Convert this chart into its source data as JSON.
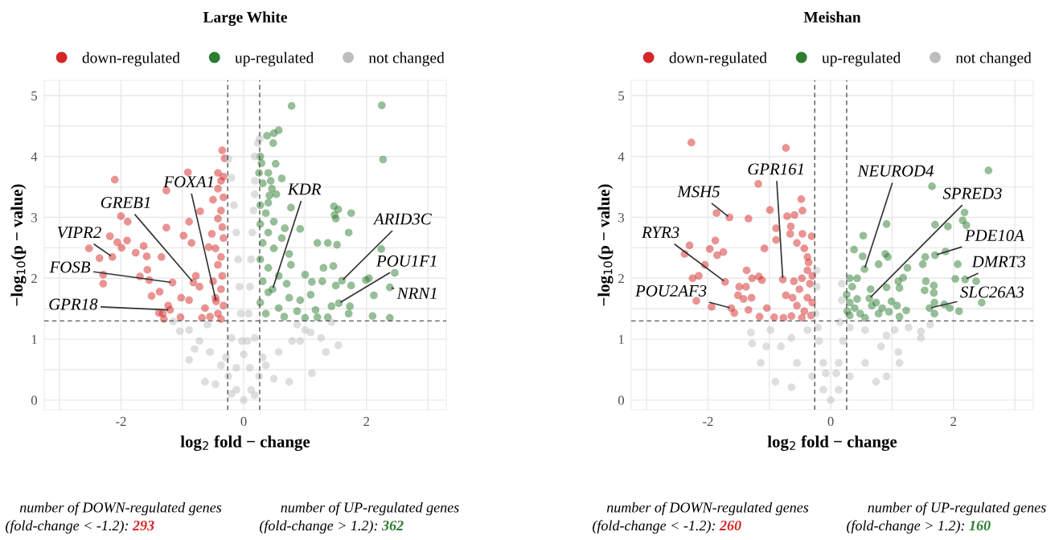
{
  "chart_data": [
    {
      "type": "scatter",
      "title": "Large White",
      "xlabel": "log$_{2}$ fold − change",
      "ylabel": "−log$_{10}$(p − value)",
      "xlim": [
        -3.25,
        3.3
      ],
      "ylim": [
        -0.16,
        5.25
      ],
      "xticks": [
        {
          "value": -3,
          "label": null
        },
        -2,
        {
          "value": -1,
          "label": null
        },
        0,
        {
          "value": 1,
          "label": null
        },
        2,
        {
          "value": 3,
          "label": null
        }
      ],
      "yticks": [
        0,
        {
          "value": 0.5,
          "label": null
        },
        1,
        {
          "value": 1.5,
          "label": null
        },
        2,
        {
          "value": 2.5,
          "label": null
        },
        3,
        {
          "value": 3.5,
          "label": null
        },
        4,
        {
          "value": 4.5,
          "label": null
        },
        5
      ],
      "grid": true,
      "legend": "top",
      "marker": "circle",
      "ref_lines": [
        {
          "axis": "x",
          "value": -0.26,
          "line_style": "dashed",
          "color": "#555555"
        },
        {
          "axis": "x",
          "value": 0.26,
          "line_style": "dashed",
          "color": "#555555"
        },
        {
          "axis": "y",
          "value": 1.3,
          "line_style": "dashed",
          "color": "#555555"
        }
      ],
      "series": [
        {
          "name": "down-regulated",
          "color": "#d62728",
          "x": [
            -2.14,
            -1.16,
            -0.82,
            -0.45,
            -1.2,
            -2.1,
            -0.91,
            -0.35,
            -0.31,
            -1.26,
            -2.0,
            -1.89,
            -2.18,
            -2.06,
            -1.9,
            -2.52,
            -2.35,
            -2.29,
            -2.29,
            -1.99,
            -1.76,
            -1.63,
            -1.58,
            -1.34,
            -1.57,
            -1.69,
            -1.54,
            -1.37,
            -1.5,
            -1.26,
            -0.98,
            -0.85,
            -0.71,
            -0.89,
            -0.52,
            -0.57,
            -1.23,
            -1.32,
            -1.38,
            -1.3,
            -1.03,
            -1.02,
            -0.89,
            -0.78,
            -0.72,
            -0.63,
            -0.68,
            -0.37,
            -0.42,
            -0.33,
            -0.5,
            -0.37,
            -0.42,
            -0.35,
            -0.33,
            -0.46,
            -0.37,
            -0.42,
            -0.35,
            -0.5,
            -0.37,
            -0.46,
            -0.33,
            -0.42,
            -0.55,
            -0.37,
            -0.33,
            -0.42
          ],
          "values": [
            2.35,
            1.93,
            1.93,
            1.62,
            1.48,
            3.62,
            3.74,
            4.1,
            3.97,
            3.44,
            3.02,
            2.93,
            2.69,
            2.59,
            2.62,
            2.49,
            2.33,
            2.06,
            1.91,
            2.5,
            2.42,
            2.53,
            2.36,
            2.35,
            2.14,
            2.03,
            1.97,
            1.78,
            1.71,
            2.83,
            2.7,
            2.58,
            3.1,
            2.93,
            2.73,
            2.51,
            1.55,
            1.42,
            1.43,
            1.33,
            1.36,
            1.68,
            1.64,
            2.04,
            1.86,
            1.51,
            1.35,
            3.6,
            3.47,
            3.33,
            3.29,
            3.11,
            2.98,
            2.84,
            2.66,
            2.49,
            2.35,
            2.22,
            2.04,
            1.95,
            1.82,
            1.68,
            1.55,
            1.42,
            1.37,
            1.33,
            3.67,
            3.73
          ]
        },
        {
          "name": "up-regulated",
          "color": "#2e7d32",
          "x": [
            0.47,
            1.6,
            1.55,
            2.38,
            0.78,
            2.25,
            2.27,
            0.38,
            0.49,
            0.57,
            0.48,
            0.27,
            0.29,
            0.52,
            0.25,
            0.4,
            0.62,
            0.31,
            0.44,
            0.46,
            0.42,
            0.53,
            0.4,
            0.77,
            1.47,
            1.54,
            1.75,
            1.48,
            1.5,
            0.67,
            0.92,
            1.71,
            1.2,
            1.37,
            1.52,
            2.24,
            0.77,
            1.3,
            1.46,
            1.0,
            1.28,
            1.11,
            1.99,
            2.04,
            2.46,
            1.5,
            1.75,
            2.12,
            1.43,
            1.73,
            1.71,
            1.37,
            2.1,
            2.38,
            1.17,
            1.2,
            0.27,
            0.36,
            0.27,
            0.4,
            0.31,
            0.49,
            0.27,
            0.4,
            0.57,
            0.31,
            0.7,
            0.4,
            0.74,
            0.27,
            0.92,
            0.57,
            0.87,
            0.36,
            0.66,
            1.0,
            1.09,
            0.49,
            0.62,
            0.74
          ],
          "values": [
            1.82,
            1.96,
            1.59,
            1.85,
            4.83,
            4.84,
            3.95,
            4.34,
            4.38,
            4.43,
            4.22,
            4.0,
            3.89,
            3.88,
            3.73,
            3.73,
            3.64,
            3.56,
            3.6,
            3.47,
            3.36,
            3.38,
            3.24,
            3.16,
            3.18,
            3.13,
            3.07,
            3.04,
            2.98,
            2.82,
            2.81,
            2.75,
            2.58,
            2.58,
            2.55,
            2.48,
            2.22,
            2.17,
            2.2,
            2.06,
            1.95,
            1.94,
            1.97,
            2.0,
            2.09,
            1.88,
            1.88,
            1.72,
            1.54,
            1.54,
            1.42,
            1.36,
            1.38,
            1.35,
            1.48,
            1.36,
            3.2,
            3.07,
            2.89,
            2.75,
            2.58,
            2.49,
            2.31,
            2.17,
            2.04,
            1.95,
            1.91,
            1.77,
            1.68,
            1.6,
            1.64,
            1.51,
            1.46,
            1.42,
            1.37,
            1.35,
            1.73,
            2.93,
            2.66,
            2.4
          ]
        },
        {
          "name": "not changed",
          "color": "#bdbdbd",
          "x": [
            0,
            -0.12,
            0.12,
            -0.25,
            0.25,
            -0.37,
            0.36,
            -0.55,
            0.57,
            -0.72,
            0.79,
            -0.89,
            1.0,
            -1.04,
            1.26,
            1.54,
            1.34,
            1.11,
            0.74,
            -0.63,
            -0.89,
            -0.12,
            0.1,
            -0.2,
            0.18,
            -0.59,
            0.87,
            0.92,
            -0.29,
            0.31,
            -1.15,
            1.43,
            1.09,
            -0.8,
            0.49,
            -0.46,
            -0.2,
            0.18,
            -0.25,
            -0.2,
            -0.16,
            -0.12,
            -0.09,
            -0.07,
            -0.05,
            -0.03,
            0,
            0.23,
            0.18,
            0.18,
            0.18,
            0.16,
            0.14,
            0.12,
            0.1,
            0.08,
            0.06,
            0.26
          ],
          "values": [
            0,
            0.17,
            0.17,
            0.39,
            0.39,
            0.57,
            0.57,
            0.79,
            0.79,
            0.97,
            0.97,
            1.15,
            1.15,
            1.13,
            1.02,
            0.9,
            0.79,
            0.44,
            0.3,
            0.3,
            0.66,
            0.53,
            0.53,
            1.02,
            1.02,
            1.24,
            1.24,
            0.97,
            0.7,
            0.7,
            1.29,
            1.28,
            1.11,
            0.84,
            0.35,
            0.26,
            0.1,
            0.08,
            3.96,
            3.65,
            3.2,
            2.75,
            2.31,
            1.86,
            1.42,
            0.97,
            0.75,
            4.22,
            4.0,
            3.6,
            3.38,
            3.11,
            2.75,
            2.31,
            1.86,
            1.42,
            0.97,
            4.29
          ]
        }
      ],
      "annotations": [
        {
          "text": "VIPR2",
          "x": -2.14,
          "y": 2.35
        },
        {
          "text": "FOSB",
          "x": -1.16,
          "y": 1.93
        },
        {
          "text": "GREB1",
          "x": -0.82,
          "y": 1.93
        },
        {
          "text": "FOXA1",
          "x": -0.45,
          "y": 1.62
        },
        {
          "text": "GPR18",
          "x": -1.2,
          "y": 1.48
        },
        {
          "text": "KDR",
          "x": 0.47,
          "y": 1.82
        },
        {
          "text": "ARID3C",
          "x": 1.6,
          "y": 1.96
        },
        {
          "text": "POU1F1",
          "x": 1.55,
          "y": 1.59
        },
        {
          "text": "NRN1",
          "x": 2.38,
          "y": 1.85
        },
        "number of DOWN-regulated genes\n(fold-change < -1.2): 293",
        "number of UP-regulated genes\n(fold-change > 1.2): 362"
      ]
    },
    {
      "type": "scatter",
      "title": "Meishan",
      "xlabel": "log$_{2}$ fold − change",
      "ylabel": "−log$_{10}$(p − value)",
      "xlim": [
        -3.25,
        3.3
      ],
      "ylim": [
        -0.16,
        5.25
      ],
      "xticks": [
        {
          "value": -3,
          "label": null
        },
        -2,
        {
          "value": -1,
          "label": null
        },
        0,
        {
          "value": 1,
          "label": null
        },
        2,
        {
          "value": 3,
          "label": null
        }
      ],
      "yticks": [
        0,
        {
          "value": 0.5,
          "label": null
        },
        1,
        {
          "value": 1.5,
          "label": null
        },
        2,
        {
          "value": 2.5,
          "label": null
        },
        3,
        {
          "value": 3.5,
          "label": null
        },
        4,
        {
          "value": 4.5,
          "label": null
        },
        5
      ],
      "grid": true,
      "legend": "top",
      "marker": "circle",
      "ref_lines": [
        {
          "axis": "x",
          "value": -0.26,
          "line_style": "dashed",
          "color": "#555555"
        },
        {
          "axis": "x",
          "value": 0.26,
          "line_style": "dashed",
          "color": "#555555"
        },
        {
          "axis": "y",
          "value": 1.3,
          "line_style": "dashed",
          "color": "#555555"
        }
      ],
      "series": [
        {
          "name": "down-regulated",
          "color": "#d62728",
          "x": [
            -1.65,
            -0.78,
            -1.72,
            -1.62,
            -2.27,
            -0.73,
            -1.18,
            -0.48,
            -0.46,
            -0.99,
            -1.34,
            -1.86,
            -0.71,
            -0.59,
            -0.89,
            -0.65,
            -0.66,
            -0.46,
            -0.31,
            -0.89,
            -1.88,
            -2.3,
            -2.38,
            -1.97,
            -1.85,
            -1.75,
            -2.05,
            -1.08,
            -0.55,
            -0.43,
            -0.38,
            -2.25,
            -2.15,
            -1.37,
            -1.28,
            -1.17,
            -1.12,
            -1.49,
            -1.38,
            -1.51,
            -1.42,
            -1.29,
            -1.34,
            -2.19,
            -1.94,
            -1.57,
            -1.16,
            -1.04,
            -0.92,
            -0.73,
            -0.62,
            -0.77,
            -0.64,
            -0.38,
            -0.47,
            -0.34,
            -0.51,
            -0.38,
            -0.3,
            -0.55,
            -0.43,
            -0.32,
            -0.47,
            -0.6,
            -0.36,
            -0.3
          ],
          "values": [
            3.0,
            1.98,
            1.94,
            1.51,
            4.23,
            4.14,
            3.55,
            3.3,
            3.11,
            3.12,
            2.98,
            3.07,
            3.02,
            3.04,
            2.82,
            2.85,
            2.73,
            2.73,
            2.69,
            2.63,
            2.62,
            2.54,
            2.4,
            2.48,
            2.38,
            2.43,
            2.22,
            2.49,
            2.58,
            2.49,
            2.35,
            2.0,
            2.04,
            2.13,
            2.0,
            2.03,
            1.97,
            1.86,
            1.86,
            1.72,
            1.66,
            1.68,
            1.48,
            1.63,
            1.53,
            1.43,
            1.37,
            1.51,
            1.36,
            1.72,
            1.68,
            1.35,
            1.38,
            2.13,
            2.0,
            1.91,
            1.82,
            1.68,
            1.6,
            1.55,
            1.46,
            1.39,
            1.35,
            1.95,
            2.26,
            2.04
          ]
        },
        {
          "name": "up-regulated",
          "color": "#2e7d32",
          "x": [
            0.55,
            0.63,
            1.7,
            2.19,
            1.61,
            2.57,
            1.65,
            2.18,
            2.15,
            2.21,
            1.7,
            1.91,
            0.91,
            0.53,
            0.38,
            0.52,
            0.89,
            0.93,
            0.78,
            1.25,
            1.54,
            1.5,
            2.07,
            1.87,
            0.31,
            0.43,
            1.18,
            1.1,
            1.55,
            1.68,
            2.03,
            2.37,
            1.68,
            1.53,
            1.12,
            0.91,
            0.65,
            0.99,
            1.69,
            2.46,
            1.85,
            1.94,
            2.09,
            1.69,
            1.23,
            1.08,
            0.95,
            0.84,
            0.74,
            0.26,
            0.31,
            0.39,
            0.48,
            0.31,
            0.56,
            0.27,
            0.43,
            0.35,
            0.67,
            0.78,
            1.12
          ],
          "values": [
            2.15,
            1.67,
            2.38,
            1.98,
            1.51,
            3.77,
            3.51,
            3.08,
            2.95,
            2.87,
            2.88,
            2.85,
            2.89,
            2.7,
            2.47,
            2.36,
            2.4,
            2.35,
            2.23,
            2.17,
            2.35,
            2.23,
            2.23,
            2.44,
            2.0,
            2.0,
            2.01,
            1.95,
            1.95,
            1.88,
            1.99,
            1.95,
            1.76,
            1.8,
            1.84,
            1.85,
            1.82,
            1.62,
            1.6,
            1.6,
            1.57,
            1.51,
            1.46,
            1.42,
            1.47,
            1.55,
            1.45,
            1.51,
            1.6,
            1.73,
            1.6,
            1.51,
            1.42,
            1.39,
            1.35,
            1.46,
            1.66,
            1.86,
            1.55,
            1.42,
            1.37
          ]
        },
        {
          "name": "not changed",
          "color": "#bdbdbd",
          "x": [
            1.47,
            1.47,
            1.27,
            1.62,
            -1.3,
            -1.28,
            -1.05,
            -0.9,
            -1.14,
            1.1,
            1.12,
            0.91,
            0.74,
            -0.64,
            0,
            -0.12,
            0.13,
            -0.3,
            0.31,
            -0.55,
            0.56,
            -0.81,
            0.82,
            -0.98,
            1.04,
            -0.12,
            0.13,
            -0.08,
            0.09,
            -0.19,
            0.2,
            -0.25,
            -0.23,
            -0.23,
            0.18,
            0.18,
            0.15,
            -0.21,
            0.31,
            -0.38,
            0.56,
            -0.64,
            0.91
          ],
          "values": [
            1.13,
            1.02,
            1.19,
            1.24,
            1.11,
            0.93,
            0.88,
            0.3,
            0.61,
            0.79,
            0.61,
            0.39,
            0.3,
            0.21,
            0,
            0.17,
            0.17,
            0.39,
            0.39,
            0.61,
            0.61,
            0.88,
            0.88,
            1.15,
            1.15,
            0.61,
            0.61,
            0.44,
            0.44,
            0.97,
            0.97,
            1.42,
            1.86,
            2.13,
            1.91,
            1.64,
            1.28,
            1.19,
            1.19,
            1.15,
            1.15,
            1.02,
            1.06
          ]
        }
      ],
      "annotations": [
        {
          "text": "MSH5",
          "x": -1.65,
          "y": 3.0
        },
        {
          "text": "GPR161",
          "x": -0.78,
          "y": 1.98
        },
        {
          "text": "RYR3",
          "x": -1.72,
          "y": 1.94
        },
        {
          "text": "POU2AF3",
          "x": -1.62,
          "y": 1.51
        },
        {
          "text": "NEUROD4",
          "x": 0.55,
          "y": 2.15
        },
        {
          "text": "SPRED3",
          "x": 0.63,
          "y": 1.67
        },
        {
          "text": "PDE10A",
          "x": 1.7,
          "y": 2.38
        },
        {
          "text": "DMRT3",
          "x": 2.19,
          "y": 1.98
        },
        {
          "text": "SLC26A3",
          "x": 1.61,
          "y": 1.51
        },
        "number of DOWN-regulated genes\n(fold-change < -1.2): 260",
        "number of UP-regulated genes\n(fold-change > 1.2): 160"
      ]
    }
  ]
}
